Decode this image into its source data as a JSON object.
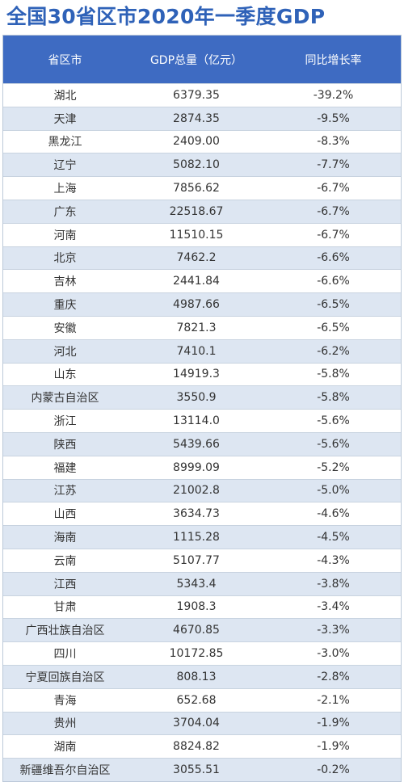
{
  "chart_data": {
    "type": "table",
    "title": "全国30省区市2020年一季度GDP",
    "columns": [
      "省区市",
      "GDP总量（亿元）",
      "同比增长率"
    ],
    "rows": [
      [
        "湖北",
        "6379.35",
        "-39.2%"
      ],
      [
        "天津",
        "2874.35",
        "-9.5%"
      ],
      [
        "黑龙江",
        "2409.00",
        "-8.3%"
      ],
      [
        "辽宁",
        "5082.10",
        "-7.7%"
      ],
      [
        "上海",
        "7856.62",
        "-6.7%"
      ],
      [
        "广东",
        "22518.67",
        "-6.7%"
      ],
      [
        "河南",
        "11510.15",
        "-6.7%"
      ],
      [
        "北京",
        "7462.2",
        "-6.6%"
      ],
      [
        "吉林",
        "2441.84",
        "-6.6%"
      ],
      [
        "重庆",
        "4987.66",
        "-6.5%"
      ],
      [
        "安徽",
        "7821.3",
        "-6.5%"
      ],
      [
        "河北",
        "7410.1",
        "-6.2%"
      ],
      [
        "山东",
        "14919.3",
        "-5.8%"
      ],
      [
        "内蒙古自治区",
        "3550.9",
        "-5.8%"
      ],
      [
        "浙江",
        "13114.0",
        "-5.6%"
      ],
      [
        "陕西",
        "5439.66",
        "-5.6%"
      ],
      [
        "福建",
        "8999.09",
        "-5.2%"
      ],
      [
        "江苏",
        "21002.8",
        "-5.0%"
      ],
      [
        "山西",
        "3634.73",
        "-4.6%"
      ],
      [
        "海南",
        "1115.28",
        "-4.5%"
      ],
      [
        "云南",
        "5107.77",
        "-4.3%"
      ],
      [
        "江西",
        "5343.4",
        "-3.8%"
      ],
      [
        "甘肃",
        "1908.3",
        "-3.4%"
      ],
      [
        "广西壮族自治区",
        "4670.85",
        "-3.3%"
      ],
      [
        "四川",
        "10172.85",
        "-3.0%"
      ],
      [
        "宁夏回族自治区",
        "808.13",
        "-2.8%"
      ],
      [
        "青海",
        "652.68",
        "-2.1%"
      ],
      [
        "贵州",
        "3704.04",
        "-1.9%"
      ],
      [
        "湖南",
        "8824.82",
        "-1.9%"
      ],
      [
        "新疆维吾尔自治区",
        "3055.51",
        "-0.2%"
      ]
    ]
  },
  "colors": {
    "title": "#2f62b8",
    "header_bg": "#3e6bc2",
    "stripe": "#dde6f2"
  }
}
